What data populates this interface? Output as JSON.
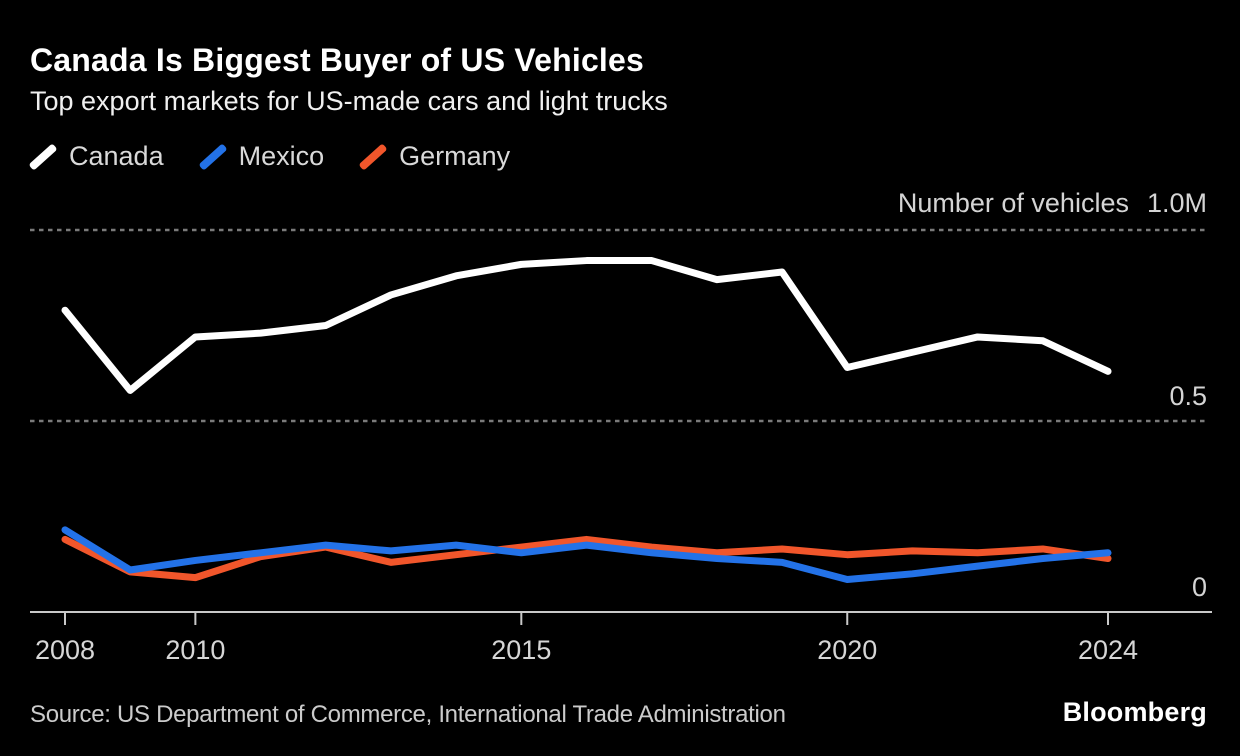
{
  "header": {
    "title": "Canada Is Biggest Buyer of US Vehicles",
    "subtitle": "Top export markets for US-made cars and light trucks"
  },
  "legend": {
    "items": [
      {
        "label": "Canada",
        "color": "#ffffff"
      },
      {
        "label": "Mexico",
        "color": "#2372e8"
      },
      {
        "label": "Germany",
        "color": "#f1562b"
      }
    ]
  },
  "chart_data": {
    "type": "line",
    "title": "Canada Is Biggest Buyer of US Vehicles",
    "subtitle": "Top export markets for US-made cars and light trucks",
    "ylabel": "Number of vehicles",
    "unit": "millions of vehicles",
    "x": [
      2008,
      2009,
      2010,
      2011,
      2012,
      2013,
      2014,
      2015,
      2016,
      2017,
      2018,
      2019,
      2020,
      2021,
      2022,
      2023,
      2024
    ],
    "series": [
      {
        "name": "Canada",
        "color": "#ffffff",
        "values": [
          0.79,
          0.58,
          0.72,
          0.73,
          0.75,
          0.83,
          0.88,
          0.91,
          0.92,
          0.92,
          0.87,
          0.89,
          0.64,
          0.68,
          0.72,
          0.71,
          0.63
        ]
      },
      {
        "name": "Mexico",
        "color": "#2372e8",
        "values": [
          0.215,
          0.11,
          0.135,
          0.155,
          0.175,
          0.16,
          0.175,
          0.155,
          0.175,
          0.155,
          0.14,
          0.13,
          0.085,
          0.1,
          0.12,
          0.14,
          0.155
        ]
      },
      {
        "name": "Germany",
        "color": "#f1562b",
        "values": [
          0.19,
          0.105,
          0.09,
          0.145,
          0.17,
          0.13,
          0.15,
          0.17,
          0.19,
          0.17,
          0.155,
          0.165,
          0.15,
          0.16,
          0.155,
          0.165,
          0.14
        ]
      }
    ],
    "x_ticks": [
      "2008",
      "2010",
      "2015",
      "2020",
      "2024"
    ],
    "y_ticks": [
      {
        "value": 1.0,
        "label": "1.0M"
      },
      {
        "value": 0.5,
        "label": "0.5"
      },
      {
        "value": 0.0,
        "label": "0"
      }
    ],
    "xlim": [
      2008,
      2024
    ],
    "ylim": [
      0,
      1.05
    ],
    "grid": "horizontal-dashed",
    "legend_position": "top-left",
    "colors": {
      "axis": "#c9c9c9",
      "gridline": "#7a7a7a",
      "tick_label": "#d6d6d6"
    }
  },
  "footer": {
    "source": "Source: US Department of Commerce, International Trade Administration",
    "brand": "Bloomberg"
  }
}
